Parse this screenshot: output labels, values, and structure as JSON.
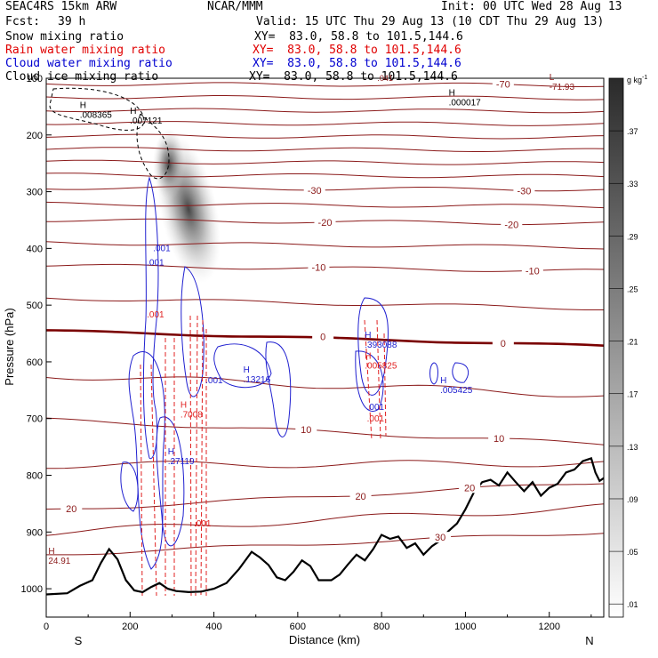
{
  "header": {
    "model": "SEAC4RS 15km ARW",
    "org": "NCAR/MMM",
    "init": "Init: 00 UTC Wed 28 Aug 13",
    "fcst_label": "Fcst:",
    "fcst_value": "39 h",
    "valid": "Valid: 15 UTC Thu 29 Aug 13 (10 CDT Thu 29 Aug 13)",
    "fields": [
      {
        "name": "Snow mixing ratio",
        "xy": "XY=  83.0, 58.8 to 101.5,144.6",
        "color": "#000000"
      },
      {
        "name": "Rain water mixing ratio",
        "xy": "XY=  83.0, 58.8 to 101.5,144.6",
        "color": "#e00000"
      },
      {
        "name": "Cloud water mixing ratio",
        "xy": "XY=  83.0, 58.8 to 101.5,144.6",
        "color": "#0000d0"
      },
      {
        "name": "Cloud ice mixing ratio",
        "xy": "XY=  83.0, 58.8 to 101.5,144.6",
        "color": "#000000"
      }
    ]
  },
  "chart_data": {
    "type": "cross-section",
    "xlabel": "Distance (km)",
    "ylabel": "Pressure (hPa)",
    "xlim": [
      0,
      1330
    ],
    "ylim": [
      1050,
      100
    ],
    "x_ticks": [
      0,
      200,
      400,
      600,
      800,
      1000,
      1200
    ],
    "y_ticks": [
      200,
      300,
      400,
      500,
      600,
      700,
      800,
      900,
      1000
    ],
    "y_ticks_overprinted": [
      100
    ],
    "x_end_labels": {
      "left": "S",
      "right": "N"
    },
    "colorbar": {
      "unit_base": "g kg",
      "unit_exp": "-1",
      "ticks": [
        0.01,
        0.05,
        0.09,
        0.13,
        0.17,
        0.21,
        0.25,
        0.29,
        0.33,
        0.37
      ],
      "tick_labels": [
        ".01",
        ".05",
        ".09",
        ".13",
        ".17",
        ".21",
        ".25",
        ".29",
        ".33",
        ".37"
      ]
    },
    "colors": {
      "temperature": "#8b1a1a",
      "freezing_level": "#7a0000",
      "rain": "#e02020",
      "cloud_water": "#2020d0",
      "terrain": "#000000",
      "snow": "#000000"
    },
    "terrain": {
      "x": [
        0,
        50,
        80,
        110,
        130,
        150,
        170,
        190,
        210,
        230,
        250,
        270,
        290,
        310,
        340,
        370,
        400,
        430,
        460,
        490,
        510,
        530,
        550,
        570,
        590,
        610,
        630,
        650,
        680,
        700,
        720,
        740,
        760,
        780,
        800,
        820,
        840,
        860,
        880,
        900,
        920,
        940,
        960,
        980,
        1000,
        1020,
        1040,
        1060,
        1080,
        1100,
        1120,
        1140,
        1160,
        1180,
        1200,
        1220,
        1240,
        1260,
        1280,
        1300,
        1310,
        1320,
        1330
      ],
      "p": [
        1010,
        1008,
        995,
        985,
        955,
        930,
        948,
        985,
        1003,
        1006,
        997,
        990,
        1000,
        1004,
        1006,
        1005,
        1000,
        990,
        965,
        935,
        945,
        958,
        980,
        985,
        970,
        950,
        960,
        985,
        985,
        975,
        957,
        940,
        950,
        930,
        905,
        912,
        908,
        928,
        920,
        940,
        925,
        915,
        898,
        885,
        860,
        830,
        812,
        808,
        818,
        795,
        812,
        828,
        812,
        836,
        822,
        815,
        795,
        790,
        775,
        770,
        795,
        810,
        805
      ]
    },
    "temperature_contours": [
      {
        "label": "-70",
        "p_left": 110,
        "p_right": 112
      },
      {
        "label": "-30",
        "p_left": 293,
        "p_right": 296
      },
      {
        "label": "-20",
        "p_left": 350,
        "p_right": 356
      },
      {
        "label": "-10",
        "p_left": 430,
        "p_right": 440
      },
      {
        "label": "0",
        "p_left": 545,
        "p_right": 572
      },
      {
        "label": "10",
        "p_left": 702,
        "p_right": 745
      },
      {
        "label": "20",
        "p_left": 862,
        "p_right": 812
      },
      {
        "label": "30",
        "p_left": 940,
        "p_right": 900
      }
    ],
    "extrema": [
      {
        "type": "H",
        "value": ".008365",
        "x": 80,
        "p": 170
      },
      {
        "type": "H",
        "value": ".007121",
        "x": 200,
        "p": 180
      },
      {
        "type": "H",
        "value": ".000017",
        "x": 960,
        "p": 148
      },
      {
        "type": "L",
        "value": "-71.93",
        "x": 1200,
        "p": 120
      },
      {
        "type": "H",
        "value": "24.91",
        "x": 5,
        "p": 956
      },
      {
        "type": "H",
        "value": ".13216",
        "x": 470,
        "p": 636
      },
      {
        "type": "H",
        "value": ".27119",
        "x": 290,
        "p": 780
      },
      {
        "type": "H",
        "value": ".393088",
        "x": 760,
        "p": 575
      },
      {
        "type": "H",
        "value": ".005825",
        "x": 760,
        "p": 612
      },
      {
        "type": "H",
        "value": ".005425",
        "x": 940,
        "p": 655
      },
      {
        "type": "H",
        "value": ".7008",
        "x": 320,
        "p": 698
      }
    ],
    "contour_labels": [
      {
        "value": ".001",
        "x": 255,
        "p": 405,
        "color": "blue"
      },
      {
        "value": ".001",
        "x": 240,
        "p": 430,
        "color": "blue"
      },
      {
        "value": ".001",
        "x": 240,
        "p": 522,
        "color": "red"
      },
      {
        "value": ".001",
        "x": 380,
        "p": 638,
        "color": "blue"
      },
      {
        "value": ".001",
        "x": 765,
        "p": 685,
        "color": "blue"
      },
      {
        "value": ".001",
        "x": 765,
        "p": 705,
        "color": "red"
      },
      {
        "value": ".001",
        "x": 352,
        "p": 890,
        "color": "red"
      }
    ],
    "overprinted_text": ".041"
  }
}
